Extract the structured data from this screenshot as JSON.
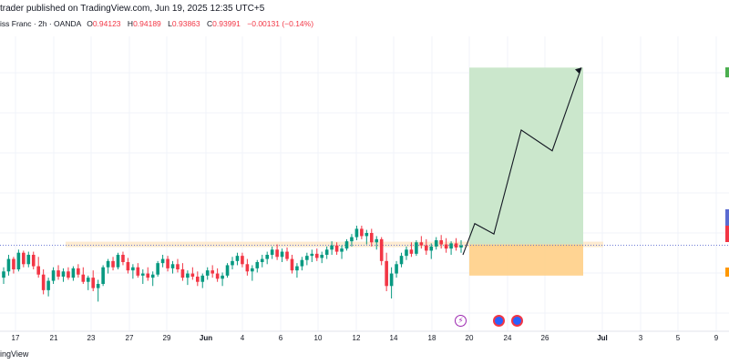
{
  "header": {
    "publish_line": "trader published on TradingView.com, Jun 19, 2025 12:35 UTC+5",
    "symbol_line": "iss Franc · 2h · OANDA",
    "ohlc": [
      {
        "k": "O",
        "v": "0.94123"
      },
      {
        "k": "H",
        "v": "0.94189"
      },
      {
        "k": "L",
        "v": "0.93863"
      },
      {
        "k": "C",
        "v": "0.93991"
      },
      {
        "k": "",
        "v": "−0.00131 (−0.14%)"
      }
    ]
  },
  "footer": {
    "logo_text": "ingView"
  },
  "colors": {
    "up": "#089981",
    "down": "#f23645",
    "target_zone": "#c8e6c9",
    "stop_zone": "#ffcc80",
    "support_zone": "#fde9cc",
    "grid": "#f0f3fa",
    "price_line": "#5b6bd1"
  },
  "events": [
    {
      "icon": "flash-icon",
      "date_index": 0
    },
    {
      "icon": "flag-icon",
      "date_index": 1
    },
    {
      "icon": "flag-icon",
      "date_index": 2
    }
  ],
  "chart_data": {
    "type": "candlestick",
    "x_tick_labels": [
      "17",
      "21",
      "23",
      "27",
      "29",
      "Jun",
      "4",
      "6",
      "10",
      "12",
      "14",
      "18",
      "20",
      "24",
      "26",
      "Jul",
      "3",
      "5",
      "9"
    ],
    "support_level": 0.94,
    "entry_price": 0.94,
    "target_price": 0.957,
    "stop_price": 0.937,
    "projection_path": [
      0.939,
      0.942,
      0.941,
      0.951,
      0.949,
      0.957
    ],
    "candles_ohlc": [
      [
        0.9368,
        0.9378,
        0.9362,
        0.9374
      ],
      [
        0.9374,
        0.939,
        0.937,
        0.9386
      ],
      [
        0.9386,
        0.9388,
        0.9372,
        0.9376
      ],
      [
        0.9376,
        0.9395,
        0.9374,
        0.9392
      ],
      [
        0.9392,
        0.9394,
        0.9378,
        0.9381
      ],
      [
        0.9381,
        0.9393,
        0.9378,
        0.939
      ],
      [
        0.939,
        0.9393,
        0.9376,
        0.9379
      ],
      [
        0.9379,
        0.9388,
        0.9368,
        0.9371
      ],
      [
        0.9371,
        0.9376,
        0.9352,
        0.9356
      ],
      [
        0.9356,
        0.9368,
        0.935,
        0.9365
      ],
      [
        0.9365,
        0.9378,
        0.9362,
        0.9375
      ],
      [
        0.9375,
        0.938,
        0.9366,
        0.9369
      ],
      [
        0.9369,
        0.9377,
        0.9364,
        0.9374
      ],
      [
        0.9374,
        0.9378,
        0.9366,
        0.9368
      ],
      [
        0.9368,
        0.9379,
        0.9365,
        0.9377
      ],
      [
        0.9377,
        0.9381,
        0.9368,
        0.9371
      ],
      [
        0.9371,
        0.9378,
        0.9362,
        0.9364
      ],
      [
        0.9364,
        0.937,
        0.9356,
        0.9368
      ],
      [
        0.9368,
        0.9375,
        0.9355,
        0.9358
      ],
      [
        0.9358,
        0.9366,
        0.9345,
        0.9362
      ],
      [
        0.9362,
        0.938,
        0.936,
        0.9378
      ],
      [
        0.9378,
        0.9386,
        0.9372,
        0.9384
      ],
      [
        0.9384,
        0.9388,
        0.9375,
        0.9378
      ],
      [
        0.9378,
        0.9392,
        0.9376,
        0.939
      ],
      [
        0.939,
        0.9393,
        0.938,
        0.9383
      ],
      [
        0.9383,
        0.9387,
        0.9372,
        0.9375
      ],
      [
        0.9375,
        0.9381,
        0.9367,
        0.9378
      ],
      [
        0.9378,
        0.9382,
        0.9368,
        0.937
      ],
      [
        0.937,
        0.9376,
        0.9362,
        0.9372
      ],
      [
        0.9372,
        0.9378,
        0.9365,
        0.9368
      ],
      [
        0.9368,
        0.9374,
        0.936,
        0.9371
      ],
      [
        0.9371,
        0.9384,
        0.9369,
        0.9382
      ],
      [
        0.9382,
        0.939,
        0.9378,
        0.9386
      ],
      [
        0.9386,
        0.9389,
        0.9374,
        0.9377
      ],
      [
        0.9377,
        0.9384,
        0.9372,
        0.9381
      ],
      [
        0.9381,
        0.9386,
        0.9373,
        0.9376
      ],
      [
        0.9376,
        0.9382,
        0.9365,
        0.9368
      ],
      [
        0.9368,
        0.9375,
        0.9361,
        0.9372
      ],
      [
        0.9372,
        0.9378,
        0.9366,
        0.9369
      ],
      [
        0.9369,
        0.9374,
        0.936,
        0.9364
      ],
      [
        0.9364,
        0.9372,
        0.9358,
        0.937
      ],
      [
        0.937,
        0.9378,
        0.9366,
        0.9375
      ],
      [
        0.9375,
        0.938,
        0.9368,
        0.9372
      ],
      [
        0.9372,
        0.9377,
        0.9364,
        0.9367
      ],
      [
        0.9367,
        0.9373,
        0.936,
        0.937
      ],
      [
        0.937,
        0.9382,
        0.9368,
        0.938
      ],
      [
        0.938,
        0.9388,
        0.9376,
        0.9384
      ],
      [
        0.9384,
        0.9392,
        0.938,
        0.9389
      ],
      [
        0.9389,
        0.9392,
        0.9378,
        0.9381
      ],
      [
        0.9381,
        0.9386,
        0.937,
        0.9374
      ],
      [
        0.9374,
        0.938,
        0.9365,
        0.9377
      ],
      [
        0.9377,
        0.9385,
        0.9373,
        0.9383
      ],
      [
        0.9383,
        0.939,
        0.9378,
        0.9386
      ],
      [
        0.9386,
        0.9393,
        0.9381,
        0.939
      ],
      [
        0.939,
        0.9398,
        0.9386,
        0.9395
      ],
      [
        0.9395,
        0.94,
        0.9385,
        0.9388
      ],
      [
        0.9388,
        0.9396,
        0.9383,
        0.9393
      ],
      [
        0.9393,
        0.9397,
        0.9384,
        0.9386
      ],
      [
        0.9386,
        0.939,
        0.9372,
        0.9375
      ],
      [
        0.9375,
        0.9382,
        0.9368,
        0.9379
      ],
      [
        0.9379,
        0.9388,
        0.9375,
        0.9385
      ],
      [
        0.9385,
        0.9392,
        0.938,
        0.9389
      ],
      [
        0.9389,
        0.9395,
        0.9383,
        0.9391
      ],
      [
        0.9391,
        0.9396,
        0.9384,
        0.9387
      ],
      [
        0.9387,
        0.9393,
        0.9382,
        0.939
      ],
      [
        0.939,
        0.9398,
        0.9386,
        0.9395
      ],
      [
        0.9395,
        0.9403,
        0.939,
        0.9399
      ],
      [
        0.9399,
        0.9402,
        0.939,
        0.9393
      ],
      [
        0.9393,
        0.9399,
        0.9386,
        0.9396
      ],
      [
        0.9396,
        0.9405,
        0.9394,
        0.9403
      ],
      [
        0.9403,
        0.941,
        0.9398,
        0.9407
      ],
      [
        0.9407,
        0.9418,
        0.9404,
        0.9415
      ],
      [
        0.9415,
        0.9418,
        0.9405,
        0.9408
      ],
      [
        0.9408,
        0.9414,
        0.94,
        0.9411
      ],
      [
        0.9411,
        0.9415,
        0.9398,
        0.9402
      ],
      [
        0.9402,
        0.9408,
        0.9395,
        0.9405
      ],
      [
        0.9405,
        0.9407,
        0.938,
        0.9384
      ],
      [
        0.9384,
        0.9392,
        0.9355,
        0.936
      ],
      [
        0.936,
        0.9378,
        0.9348,
        0.9372
      ],
      [
        0.9372,
        0.9384,
        0.9368,
        0.9381
      ],
      [
        0.9381,
        0.9392,
        0.9378,
        0.9389
      ],
      [
        0.9389,
        0.9398,
        0.9385,
        0.9395
      ],
      [
        0.9395,
        0.9402,
        0.9388,
        0.9391
      ],
      [
        0.9391,
        0.9404,
        0.9389,
        0.9402
      ],
      [
        0.9402,
        0.9408,
        0.9396,
        0.9399
      ],
      [
        0.9399,
        0.9405,
        0.939,
        0.9394
      ],
      [
        0.9394,
        0.9401,
        0.9386,
        0.9398
      ],
      [
        0.9398,
        0.9407,
        0.9395,
        0.9404
      ],
      [
        0.9404,
        0.9409,
        0.9396,
        0.94
      ],
      [
        0.94,
        0.9406,
        0.9392,
        0.9396
      ],
      [
        0.9396,
        0.9403,
        0.939,
        0.9401
      ],
      [
        0.9401,
        0.9406,
        0.9394,
        0.9397
      ],
      [
        0.9397,
        0.9404,
        0.9392,
        0.9399
      ]
    ]
  }
}
